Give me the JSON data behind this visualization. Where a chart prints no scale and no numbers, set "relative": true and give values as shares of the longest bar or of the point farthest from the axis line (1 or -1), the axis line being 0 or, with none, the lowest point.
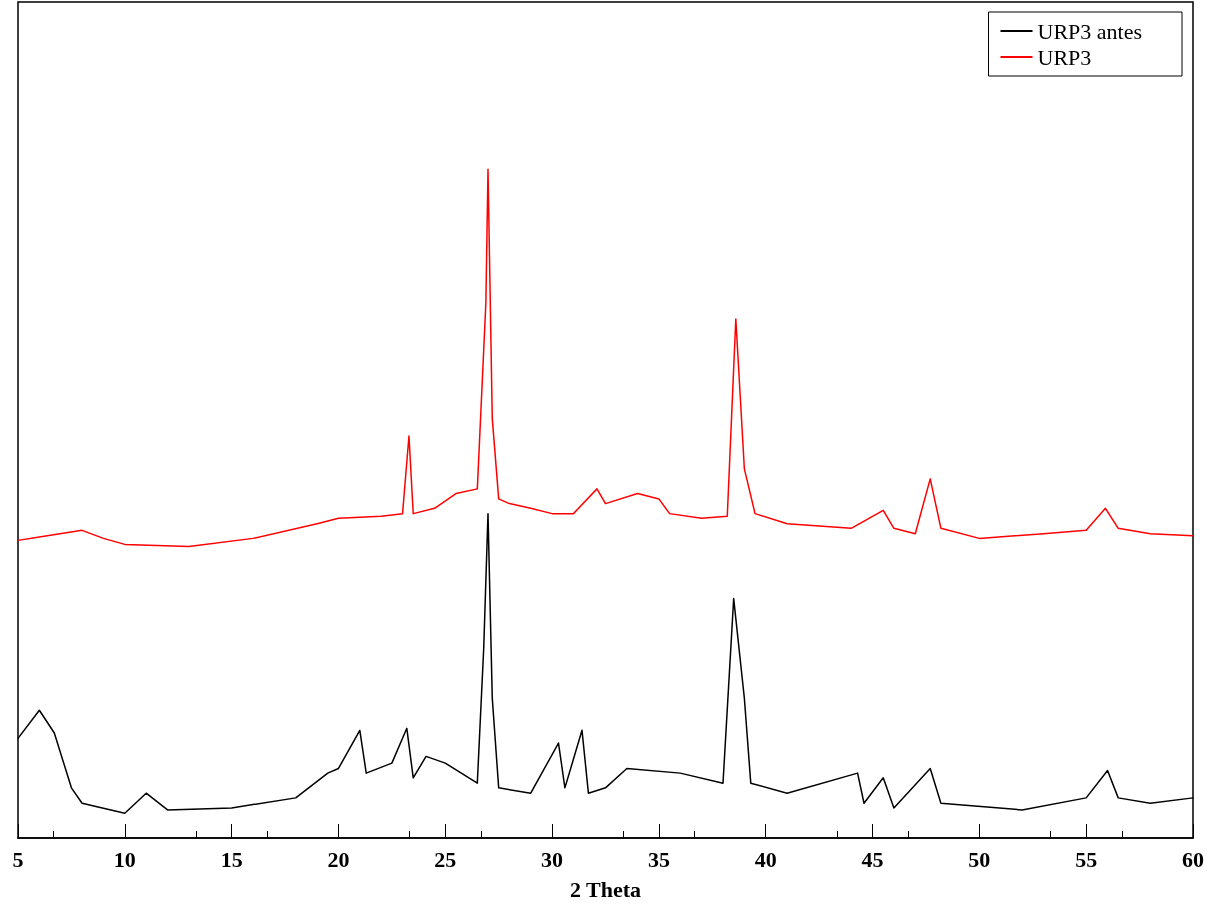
{
  "chart_data": {
    "type": "line",
    "relative": true,
    "xlabel": "2 Theta",
    "xlim": [
      5,
      60
    ],
    "xticks": [
      5,
      10,
      15,
      20,
      25,
      30,
      35,
      40,
      45,
      50,
      55,
      60
    ],
    "tick_labels": "x",
    "grid": false,
    "legend": "top right",
    "marker": "none",
    "line_style": "solid",
    "series": [
      {
        "name": "URP3 antes",
        "color": "#000000",
        "x": [
          5,
          6,
          6.7,
          7.5,
          8,
          10,
          11,
          12,
          15,
          18,
          19.5,
          20,
          21,
          21.3,
          22.5,
          23.2,
          23.5,
          24.1,
          25,
          26.5,
          26.8,
          27,
          27.2,
          27.5,
          29,
          30.3,
          30.6,
          31.4,
          31.7,
          32.5,
          33.5,
          36,
          38,
          38.5,
          39,
          39.3,
          41,
          44.3,
          44.6,
          45.5,
          46,
          47.7,
          48.2,
          52,
          55,
          56,
          56.5,
          58,
          60
        ],
        "values": [
          0.149,
          0.191,
          0.157,
          0.075,
          0.052,
          0.037,
          0.067,
          0.042,
          0.045,
          0.06,
          0.097,
          0.104,
          0.161,
          0.097,
          0.112,
          0.164,
          0.09,
          0.122,
          0.112,
          0.082,
          0.284,
          0.485,
          0.209,
          0.075,
          0.067,
          0.142,
          0.075,
          0.161,
          0.067,
          0.075,
          0.104,
          0.097,
          0.082,
          0.358,
          0.209,
          0.082,
          0.067,
          0.097,
          0.052,
          0.09,
          0.045,
          0.104,
          0.052,
          0.042,
          0.06,
          0.101,
          0.06,
          0.052,
          0.06
        ]
      },
      {
        "name": "URP3",
        "color": "#ff0000",
        "x": [
          5,
          6,
          8,
          9,
          10,
          13,
          16,
          19,
          20,
          22,
          23,
          23.3,
          23.5,
          24.5,
          25.5,
          26.5,
          26.9,
          27,
          27.2,
          27.5,
          28,
          29,
          30,
          31,
          32.1,
          32.5,
          34,
          35,
          35.5,
          37,
          38.2,
          38.6,
          39,
          39.5,
          41,
          44,
          45.5,
          46,
          47,
          47.7,
          48.2,
          50,
          53,
          55,
          55.9,
          56.5,
          58,
          60
        ],
        "values": [
          0.445,
          0.45,
          0.46,
          0.448,
          0.439,
          0.436,
          0.448,
          0.47,
          0.478,
          0.481,
          0.485,
          0.601,
          0.485,
          0.493,
          0.515,
          0.522,
          0.8,
          1,
          0.627,
          0.507,
          0.5,
          0.493,
          0.485,
          0.485,
          0.522,
          0.5,
          0.515,
          0.507,
          0.485,
          0.478,
          0.481,
          0.776,
          0.552,
          0.485,
          0.47,
          0.463,
          0.49,
          0.463,
          0.455,
          0.537,
          0.463,
          0.448,
          0.455,
          0.46,
          0.493,
          0.463,
          0.455,
          0.452
        ]
      }
    ]
  }
}
